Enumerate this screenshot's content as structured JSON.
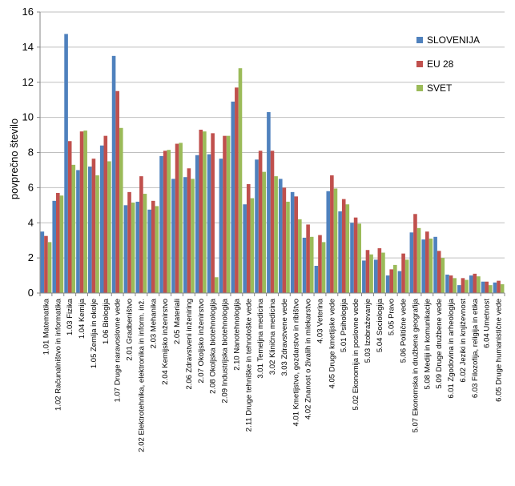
{
  "chart_data": {
    "type": "bar",
    "title": "",
    "xlabel": "",
    "ylabel": "povprečno število",
    "ylim": [
      0,
      16
    ],
    "yticks": [
      0,
      2,
      4,
      6,
      8,
      10,
      12,
      14,
      16
    ],
    "grid": true,
    "legend_position": "right",
    "colors": [
      "#4f81bd",
      "#c0504d",
      "#9bbb59"
    ],
    "categories": [
      "1.01 Matematika",
      "1.02 Računalništvo in informatika",
      "1.03 Fizika",
      "1.04 Kemija",
      "1.05 Zemlja in okolje",
      "1.06 Biologija",
      "1.07 Druge naravoslovne vede",
      "2.01 Gradbeništvo",
      "2.02 Elektrotehnika, elektronika in inform. inž.",
      "2.03 Mehanika",
      "2.04 Kemijsko inženirstvo",
      "2.05 Materiali",
      "2.06 Zdravstveni inženiring",
      "2.07 Okoljsko inženirstvo",
      "2.08 Okoljska biotehnologija",
      "2.09 Industrijska biotehnologija",
      "2.10 Nanotehnologija",
      "2.11 Druge tehniške in tehnološke vede",
      "3.01 Temeljna medicina",
      "3.02 Klinična medicina",
      "3.03 Zdravstvene vede",
      "4.01 Kmetijstvo, gozdarstvo in ribištvo",
      "4.02 Znanost o živalih in mlekarstvo",
      "4.03 Veterina",
      "4.05 Druge kmetijske vede",
      "5.01 Psihologija",
      "5.02 Ekonomija in poslovne vede",
      "5.03 Izobraževanje",
      "5.04 Sociologija",
      "5.05 Pravo",
      "5.06 Politične vede",
      "5.07 Ekonomska in družbena geografija",
      "5.08 Mediji in komunikacije",
      "5.09 Druge družbene vede",
      "6.01 Zgodovina in arheologija",
      "6.02 Jeziki in književnost",
      "6.03 Filozofija, religija in etika",
      "6.04 Umetnost",
      "6.05 Druge humanistične vede"
    ],
    "series": [
      {
        "name": "SLOVENIJA",
        "values": [
          3.5,
          5.25,
          14.75,
          7.0,
          7.2,
          8.4,
          13.5,
          5.0,
          5.2,
          4.75,
          7.8,
          6.5,
          6.6,
          7.85,
          7.9,
          7.65,
          10.9,
          5.05,
          7.6,
          10.3,
          6.5,
          5.75,
          3.15,
          1.55,
          5.8,
          4.65,
          4.0,
          1.85,
          1.9,
          1.0,
          1.25,
          3.45,
          3.05,
          3.2,
          1.05,
          0.45,
          1.0,
          0.65,
          0.6
        ]
      },
      {
        "name": "EU 28",
        "values": [
          3.25,
          5.7,
          8.65,
          9.2,
          7.65,
          8.95,
          11.5,
          5.75,
          6.65,
          5.25,
          8.1,
          8.5,
          7.1,
          9.3,
          9.1,
          8.95,
          11.7,
          6.2,
          8.1,
          8.1,
          6.0,
          5.5,
          3.9,
          3.3,
          6.7,
          5.35,
          4.3,
          2.45,
          2.55,
          1.35,
          2.25,
          4.5,
          3.5,
          2.4,
          1.0,
          0.85,
          1.1,
          0.65,
          0.7
        ]
      },
      {
        "name": "SVET",
        "values": [
          2.9,
          5.55,
          7.3,
          9.25,
          6.7,
          7.5,
          9.4,
          5.15,
          5.65,
          4.95,
          8.15,
          8.55,
          6.5,
          9.2,
          0.9,
          8.95,
          12.8,
          5.4,
          6.9,
          6.65,
          5.2,
          4.2,
          3.2,
          2.9,
          5.95,
          5.05,
          3.95,
          2.2,
          2.3,
          1.6,
          1.9,
          3.7,
          3.1,
          2.0,
          0.85,
          0.75,
          0.95,
          0.45,
          0.5
        ]
      }
    ]
  }
}
